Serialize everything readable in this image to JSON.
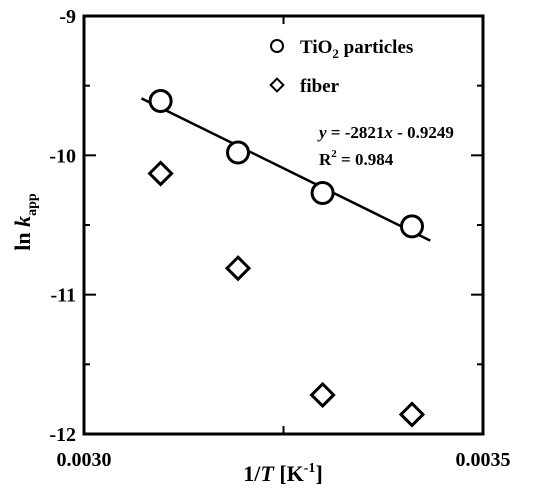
{
  "chart_data": {
    "type": "scatter",
    "xlabel": {
      "pre": "1/",
      "var": "T",
      "unit": " [K",
      "exp": "-1",
      "close": "]"
    },
    "ylabel": {
      "pre": "ln ",
      "var": "k",
      "sub": "app"
    },
    "xlim": [
      0.003,
      0.0035
    ],
    "ylim": [
      -12,
      -9
    ],
    "x_ticks": [
      {
        "value": 0.003,
        "label": "0.0030"
      },
      {
        "value": 0.0035,
        "label": "0.0035"
      }
    ],
    "y_ticks": [
      {
        "value": -9,
        "label": "-9"
      },
      {
        "value": -10,
        "label": "-10"
      },
      {
        "value": -11,
        "label": "-11"
      },
      {
        "value": -12,
        "label": "-12"
      }
    ],
    "grid": false,
    "legend_position": "top-right",
    "series": [
      {
        "name": {
          "pre": "TiO",
          "sub": "2",
          "post": " particles"
        },
        "marker": "circle",
        "x": [
          0.003096,
          0.003193,
          0.003299,
          0.003411
        ],
        "y": [
          -9.61,
          -9.98,
          -10.27,
          -10.51
        ]
      },
      {
        "name": {
          "pre": "fiber",
          "sub": "",
          "post": ""
        },
        "marker": "diamond",
        "x": [
          0.003096,
          0.003193,
          0.003299,
          0.003411
        ],
        "y": [
          -10.13,
          -10.81,
          -11.72,
          -11.86
        ]
      }
    ],
    "fit": {
      "slope": -2821,
      "intercept": -0.9249,
      "x_range": [
        0.003072,
        0.003434
      ],
      "equation": {
        "y": "y",
        "mid": " = -2821",
        "x": "x",
        "rest": " - 0.9249"
      },
      "r2": {
        "base": "R",
        "exp": "2",
        "rest": " = 0.984"
      }
    }
  }
}
